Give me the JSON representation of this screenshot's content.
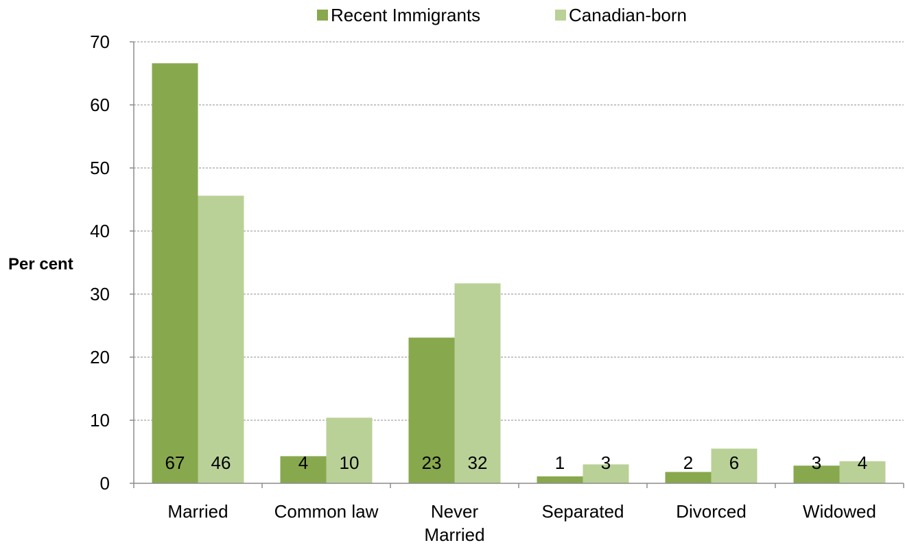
{
  "chart_data": {
    "type": "bar",
    "categories": [
      "Married",
      [
        "Common law"
      ],
      [
        "Never",
        "Married"
      ],
      [
        "Separated"
      ],
      [
        "Divorced"
      ],
      [
        "Widowed"
      ]
    ],
    "category_labels": [
      "Married",
      "Common law",
      "Never Married",
      "Separated",
      "Divorced",
      "Widowed"
    ],
    "series": [
      {
        "name": "Recent Immigrants",
        "color": "#88a84e",
        "values": [
          66.6,
          4.3,
          23.1,
          1.1,
          1.8,
          2.8
        ],
        "labels": [
          "67",
          "4",
          "23",
          "1",
          "2",
          "3"
        ]
      },
      {
        "name": "Canadian-born",
        "color": "#b9d197",
        "values": [
          45.6,
          10.4,
          31.7,
          3.0,
          5.5,
          3.5
        ],
        "labels": [
          "46",
          "10",
          "32",
          "3",
          "6",
          "4"
        ]
      }
    ],
    "ylabel": "Per cent",
    "ylim": [
      0,
      70
    ],
    "yticks": [
      0,
      10,
      20,
      30,
      40,
      50,
      60,
      70
    ],
    "grid": true,
    "legend_position": "top"
  }
}
